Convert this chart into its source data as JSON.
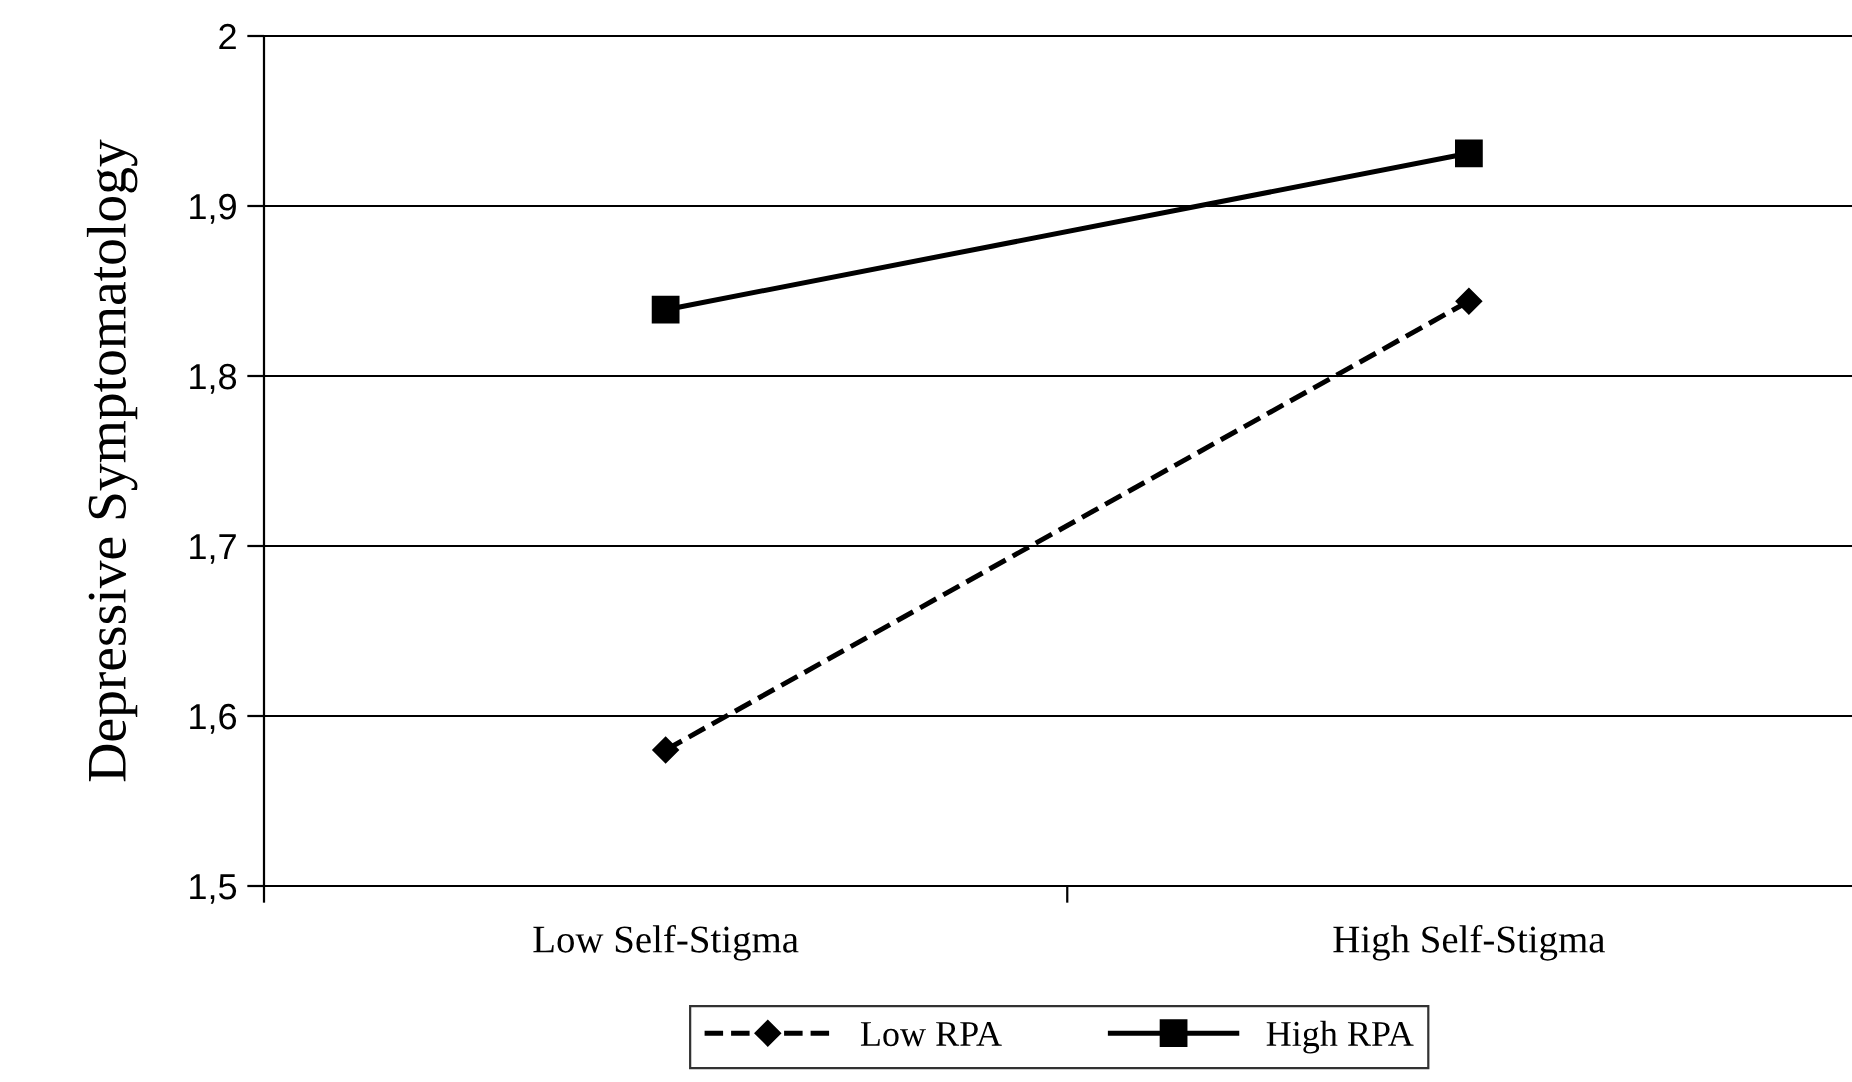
{
  "chart_data": {
    "type": "line",
    "ylabel": "Depressive Symptomatology",
    "categories": [
      "Low Self-Stigma",
      "High Self-Stigma"
    ],
    "series": [
      {
        "name": "Low RPA",
        "color": "#000000",
        "values": [
          1.58,
          1.844
        ],
        "marker": "diamond",
        "line_style": "dashed"
      },
      {
        "name": "High RPA",
        "color": "#000000",
        "values": [
          1.839,
          1.931
        ],
        "marker": "square",
        "line_style": "solid"
      }
    ],
    "ylim": [
      1.5,
      2
    ],
    "yticks": [
      {
        "value": 1.5,
        "label": "1,5"
      },
      {
        "value": 1.6,
        "label": "1,6"
      },
      {
        "value": 1.7,
        "label": "1,7"
      },
      {
        "value": 1.8,
        "label": "1,8"
      },
      {
        "value": 1.9,
        "label": "1,9"
      },
      {
        "value": 2,
        "label": "2"
      }
    ],
    "grid": "y",
    "legend": "bottom"
  }
}
